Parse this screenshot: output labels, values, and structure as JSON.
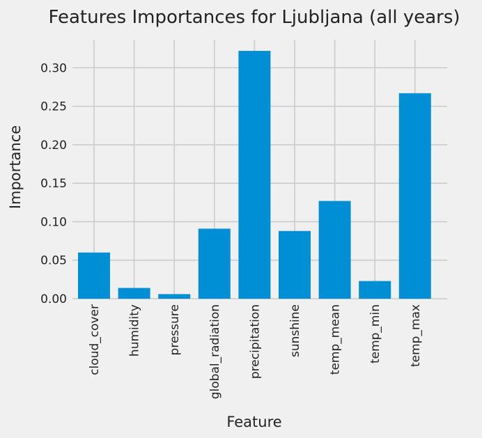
{
  "colors": {
    "background": "#f0f0f0",
    "bar": "#008fd5",
    "grid": "#cbcbcb",
    "text": "#222222"
  },
  "chart_data": {
    "type": "bar",
    "title": "Features Importances for Ljubljana (all years)",
    "xlabel": "Feature",
    "ylabel": "Importance",
    "categories": [
      "cloud_cover",
      "humidity",
      "pressure",
      "global_radiation",
      "precipitation",
      "sunshine",
      "temp_mean",
      "temp_min",
      "temp_max"
    ],
    "values": [
      0.06,
      0.014,
      0.006,
      0.091,
      0.322,
      0.088,
      0.127,
      0.023,
      0.267
    ],
    "ylim": [
      0,
      0.3365
    ],
    "yticks": [
      0.0,
      0.05,
      0.1,
      0.15,
      0.2,
      0.25,
      0.3
    ],
    "ytick_labels": [
      "0.00",
      "0.05",
      "0.10",
      "0.15",
      "0.20",
      "0.25",
      "0.30"
    ],
    "grid": true,
    "style": "fivethirtyeight"
  }
}
